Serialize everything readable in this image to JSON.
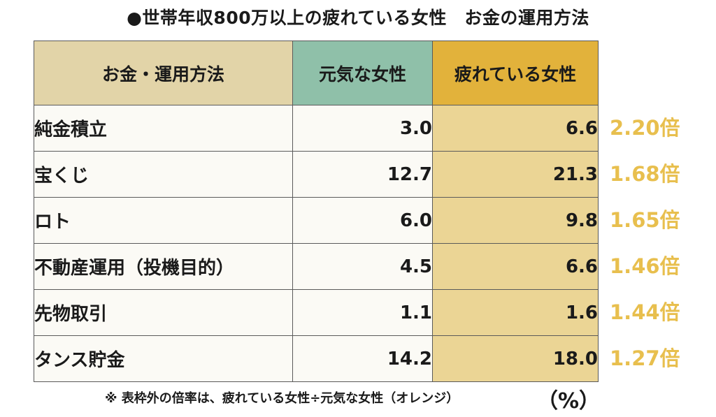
{
  "title": "●世帯年収800万以上の疲れている女性　お金の運用方法",
  "table": {
    "headers": [
      "お金・運用方法",
      "元気な女性",
      "疲れている女性"
    ],
    "rows": [
      {
        "method": "純金積立",
        "genki": "3.0",
        "tired": "6.6",
        "ratio": "2.20倍"
      },
      {
        "method": "宝くじ",
        "genki": "12.7",
        "tired": "21.3",
        "ratio": "1.68倍"
      },
      {
        "method": "ロト",
        "genki": "6.0",
        "tired": "9.8",
        "ratio": "1.65倍"
      },
      {
        "method": "不動産運用（投機目的）",
        "genki": "4.5",
        "tired": "6.6",
        "ratio": "1.46倍"
      },
      {
        "method": "先物取引",
        "genki": "1.1",
        "tired": "1.6",
        "ratio": "1.44倍"
      },
      {
        "method": "タンス貯金",
        "genki": "14.2",
        "tired": "18.0",
        "ratio": "1.27倍"
      }
    ]
  },
  "note": "※ 表枠外の倍率は、疲れている女性÷元気な女性（オレンジ）",
  "unit": "（%）",
  "colors": {
    "header_method": "#e2d4a8",
    "header_genki": "#8fc0a9",
    "header_tired": "#e2b23b",
    "cell_tired": "#ebd595",
    "ratio_text": "#e8bf4e"
  }
}
